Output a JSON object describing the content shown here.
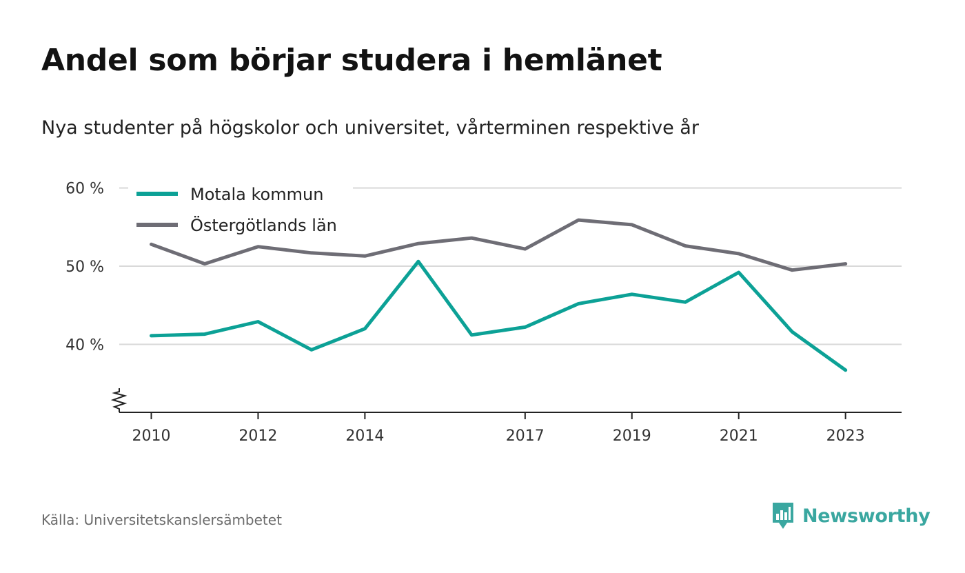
{
  "title": "Andel som börjar studera i hemlänet",
  "subtitle": "Nya studenter på högskolor och universitet, vårterminen respektive år",
  "source": "Källa: Universitetskanslersämbetet",
  "brand": {
    "name": "Newsworthy",
    "color": "#3aa7a0"
  },
  "chart_data": {
    "type": "line",
    "x": [
      2010,
      2011,
      2012,
      2013,
      2014,
      2015,
      2016,
      2017,
      2018,
      2019,
      2020,
      2021,
      2022,
      2023
    ],
    "x_tick_labels": [
      "2010",
      "2012",
      "2014",
      "2017",
      "2019",
      "2021",
      "2023"
    ],
    "y_ticks": [
      40,
      50,
      60
    ],
    "y_tick_labels": [
      "40 %",
      "50 %",
      "60 %"
    ],
    "ylim": [
      31.3,
      62
    ],
    "xlim": [
      2009.4,
      2024.05
    ],
    "grid": true,
    "axis_break": true,
    "legend_position": "top-left",
    "series": [
      {
        "name": "Motala kommun",
        "color": "#0ca196",
        "values": [
          41.1,
          41.3,
          42.9,
          39.3,
          42.0,
          50.6,
          41.2,
          42.2,
          45.2,
          46.4,
          45.4,
          49.2,
          41.6,
          36.7
        ]
      },
      {
        "name": "Östergötlands län",
        "color": "#6e6d75",
        "values": [
          52.8,
          50.3,
          52.5,
          51.7,
          51.3,
          52.9,
          53.6,
          52.2,
          55.9,
          55.3,
          52.6,
          51.6,
          49.5,
          50.3
        ]
      }
    ]
  }
}
